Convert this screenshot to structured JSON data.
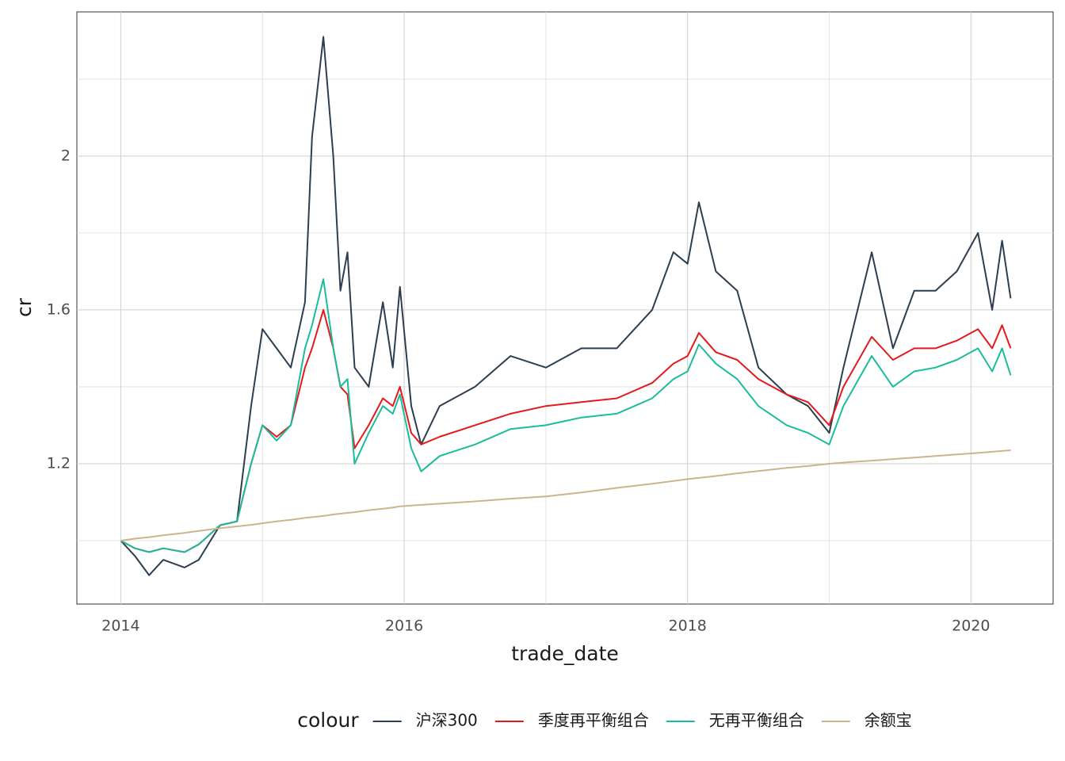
{
  "chart_data": {
    "type": "line",
    "x_label": "trade_date",
    "y_label": "cr",
    "legend_title": "colour",
    "legend_position": "bottom",
    "grid": true,
    "xlim": [
      2013.69,
      2020.58
    ],
    "xticks": [
      2014,
      2016,
      2018,
      2020
    ],
    "minor_xticks": [
      2015,
      2017,
      2019
    ],
    "ylim": [
      0.835,
      2.375
    ],
    "yticks": [
      1.2,
      1.6,
      2.0
    ],
    "minor_yticks": [
      1.0,
      1.4,
      1.8,
      2.2
    ],
    "x": [
      2014.0,
      2014.1,
      2014.2,
      2014.3,
      2014.45,
      2014.55,
      2014.7,
      2014.82,
      2014.92,
      2015.0,
      2015.1,
      2015.2,
      2015.3,
      2015.35,
      2015.43,
      2015.5,
      2015.55,
      2015.6,
      2015.65,
      2015.75,
      2015.85,
      2015.92,
      2015.97,
      2016.05,
      2016.12,
      2016.25,
      2016.5,
      2016.75,
      2017.0,
      2017.25,
      2017.5,
      2017.75,
      2017.9,
      2018.0,
      2018.08,
      2018.2,
      2018.35,
      2018.5,
      2018.7,
      2018.85,
      2019.0,
      2019.1,
      2019.3,
      2019.45,
      2019.6,
      2019.75,
      2019.9,
      2020.05,
      2020.15,
      2020.22,
      2020.28
    ],
    "series": [
      {
        "name": "沪深300",
        "color": "#2c3e50",
        "values": [
          1.0,
          0.96,
          0.91,
          0.95,
          0.93,
          0.95,
          1.04,
          1.05,
          1.35,
          1.55,
          1.5,
          1.45,
          1.62,
          2.05,
          2.31,
          2.0,
          1.65,
          1.75,
          1.45,
          1.4,
          1.62,
          1.45,
          1.66,
          1.35,
          1.25,
          1.35,
          1.4,
          1.48,
          1.45,
          1.5,
          1.5,
          1.6,
          1.75,
          1.72,
          1.88,
          1.7,
          1.65,
          1.45,
          1.38,
          1.35,
          1.28,
          1.45,
          1.75,
          1.5,
          1.65,
          1.65,
          1.7,
          1.8,
          1.6,
          1.78,
          1.63
        ]
      },
      {
        "name": "季度再平衡组合",
        "color": "#e31a1c",
        "values": [
          1.0,
          0.98,
          0.97,
          0.98,
          0.97,
          0.99,
          1.04,
          1.05,
          1.2,
          1.3,
          1.27,
          1.3,
          1.45,
          1.5,
          1.6,
          1.5,
          1.4,
          1.38,
          1.24,
          1.3,
          1.37,
          1.35,
          1.4,
          1.28,
          1.25,
          1.27,
          1.3,
          1.33,
          1.35,
          1.36,
          1.37,
          1.41,
          1.46,
          1.48,
          1.54,
          1.49,
          1.47,
          1.42,
          1.38,
          1.36,
          1.3,
          1.4,
          1.53,
          1.47,
          1.5,
          1.5,
          1.52,
          1.55,
          1.5,
          1.56,
          1.5
        ]
      },
      {
        "name": "无再平衡组合",
        "color": "#1abc9c",
        "values": [
          1.0,
          0.98,
          0.97,
          0.98,
          0.97,
          0.99,
          1.04,
          1.05,
          1.2,
          1.3,
          1.26,
          1.3,
          1.5,
          1.56,
          1.68,
          1.5,
          1.4,
          1.42,
          1.2,
          1.28,
          1.35,
          1.33,
          1.38,
          1.24,
          1.18,
          1.22,
          1.25,
          1.29,
          1.3,
          1.32,
          1.33,
          1.37,
          1.42,
          1.44,
          1.51,
          1.46,
          1.42,
          1.35,
          1.3,
          1.28,
          1.25,
          1.35,
          1.48,
          1.4,
          1.44,
          1.45,
          1.47,
          1.5,
          1.44,
          1.5,
          1.43
        ]
      },
      {
        "name": "余额宝",
        "color": "#c8b68e",
        "values": [
          1.0,
          1.005,
          1.009,
          1.014,
          1.02,
          1.025,
          1.032,
          1.037,
          1.041,
          1.045,
          1.05,
          1.054,
          1.059,
          1.061,
          1.064,
          1.068,
          1.07,
          1.072,
          1.074,
          1.079,
          1.083,
          1.086,
          1.089,
          1.091,
          1.093,
          1.096,
          1.102,
          1.109,
          1.115,
          1.125,
          1.137,
          1.148,
          1.155,
          1.16,
          1.163,
          1.168,
          1.175,
          1.181,
          1.189,
          1.194,
          1.2,
          1.203,
          1.208,
          1.212,
          1.216,
          1.22,
          1.224,
          1.228,
          1.231,
          1.233,
          1.235
        ]
      }
    ]
  }
}
